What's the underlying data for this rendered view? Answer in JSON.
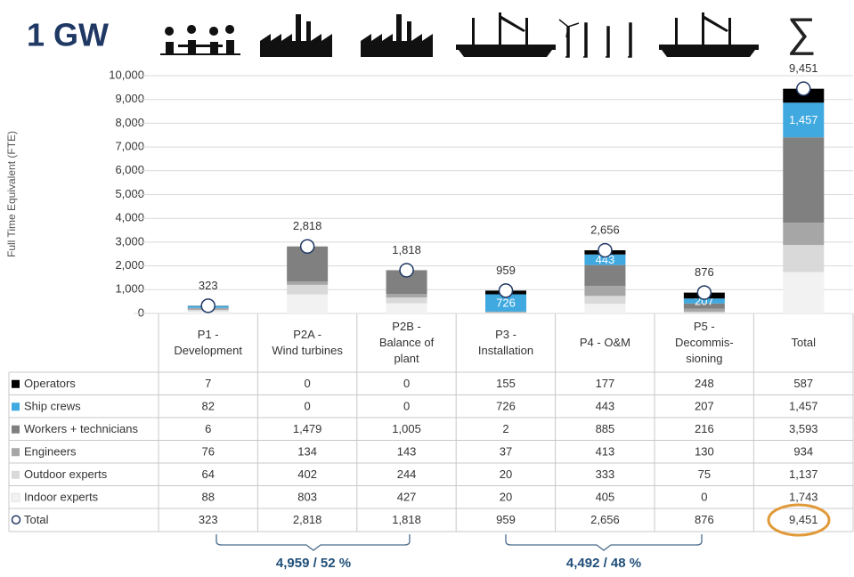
{
  "header": {
    "title": "1 GW",
    "sum_symbol": "∑"
  },
  "chart_data": {
    "type": "stacked_bar",
    "y_label": "Full Time Equivalent (FTE)",
    "categories": [
      "P1 -\nDevelopment",
      "P2A -\nWind turbines",
      "P2B -\nBalance of\nplant",
      "P3 -\nInstallation",
      "P4 - O&M",
      "P5 -\nDecommis-\nsioning",
      "Total"
    ],
    "ylim": [
      0,
      10000
    ],
    "yticks": [
      0,
      {
        "value": 1000,
        "label": "1,000"
      },
      {
        "value": 2000,
        "label": "2,000"
      },
      {
        "value": 3000,
        "label": "3,000"
      },
      {
        "value": 4000,
        "label": "4,000"
      },
      {
        "value": 5000,
        "label": "5,000"
      },
      {
        "value": 6000,
        "label": "6,000"
      },
      {
        "value": 7000,
        "label": "7,000"
      },
      {
        "value": 8000,
        "label": "8,000"
      },
      {
        "value": 9000,
        "label": "9,000"
      },
      {
        "value": 10000,
        "label": "10,000"
      }
    ],
    "grid": true,
    "series": [
      {
        "name": "Operators",
        "color": "#000000",
        "values": [
          7,
          0,
          0,
          155,
          177,
          248,
          587
        ],
        "value_labels": [
          "7",
          "0",
          "0",
          "155",
          "177",
          "248",
          "587"
        ]
      },
      {
        "name": "Ship crews",
        "color": "#3fa9e0",
        "values": [
          82,
          0,
          0,
          726,
          443,
          207,
          1457
        ],
        "value_labels": [
          "82",
          "0",
          "0",
          "726",
          "443",
          "207",
          "1,457"
        ],
        "show_inside": [
          false,
          false,
          false,
          true,
          true,
          true,
          true
        ]
      },
      {
        "name": "Workers + technicians",
        "color": "#808080",
        "values": [
          6,
          1479,
          1005,
          2,
          885,
          216,
          3593
        ],
        "value_labels": [
          "6",
          "1,479",
          "1,005",
          "2",
          "885",
          "216",
          "3,593"
        ]
      },
      {
        "name": "Engineers",
        "color": "#a6a6a6",
        "values": [
          76,
          134,
          143,
          37,
          413,
          130,
          934
        ],
        "value_labels": [
          "76",
          "134",
          "143",
          "37",
          "413",
          "130",
          "934"
        ]
      },
      {
        "name": "Outdoor experts",
        "color": "#d9d9d9",
        "values": [
          64,
          402,
          244,
          20,
          333,
          75,
          1137
        ],
        "value_labels": [
          "64",
          "402",
          "244",
          "20",
          "333",
          "75",
          "1,137"
        ]
      },
      {
        "name": "Indoor experts",
        "color": "#f2f2f2",
        "values": [
          88,
          803,
          427,
          20,
          405,
          0,
          1743
        ],
        "value_labels": [
          "88",
          "803",
          "427",
          "20",
          "405",
          "0",
          "1,743"
        ]
      },
      {
        "name": "Total",
        "color": "#1f3864",
        "marker": "circle",
        "values": [
          323,
          2818,
          1818,
          959,
          2656,
          876,
          9451
        ],
        "value_labels": [
          "323",
          "2,818",
          "1,818",
          "959",
          "2,656",
          "876",
          "9,451"
        ]
      }
    ],
    "annotations": [
      "4,959 / 52 %",
      "4,492 / 48 %"
    ]
  }
}
